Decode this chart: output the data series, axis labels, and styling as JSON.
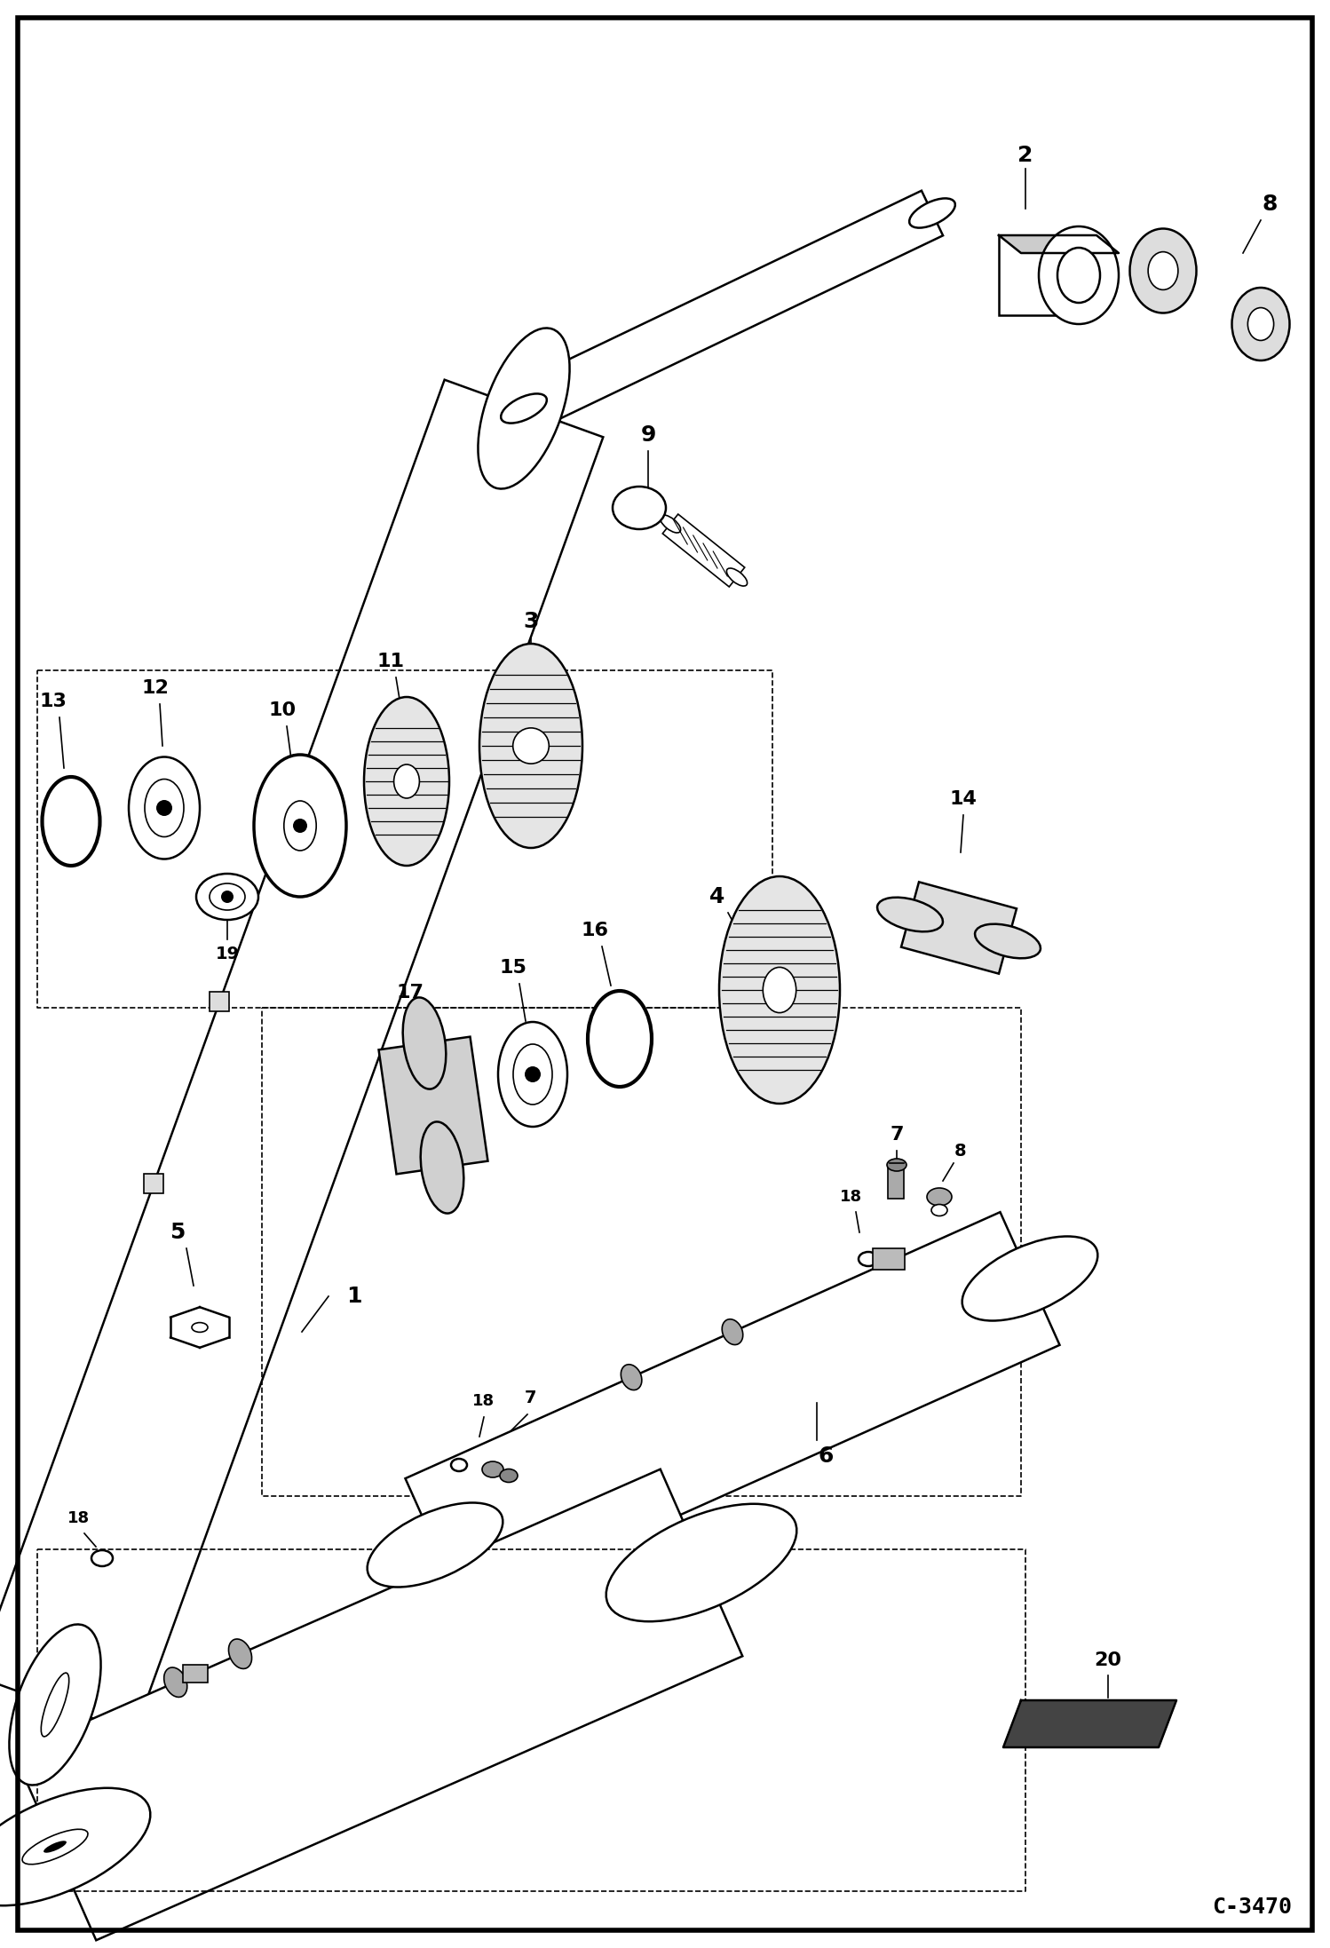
{
  "bg_color": "#ffffff",
  "border_color": "#000000",
  "line_color": "#000000",
  "fig_width": 14.98,
  "fig_height": 21.94,
  "dpi": 100,
  "code_text": "C-3470",
  "border_lw": 4.0,
  "main_lw": 1.8,
  "thin_lw": 1.2,
  "thick_lw": 2.5
}
